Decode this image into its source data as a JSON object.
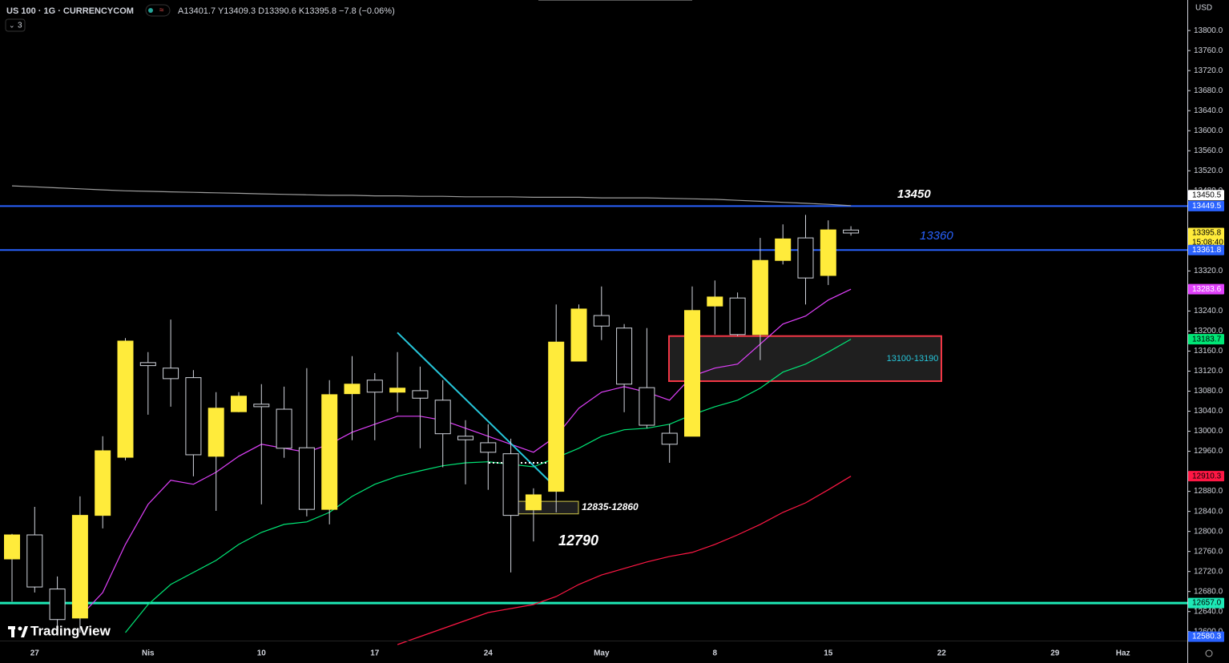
{
  "chart_data": {
    "type": "candlestick",
    "title": "US 100 · 1G · CURRENCYCOM",
    "ohlc_legend": "A13401.7 Y13409.3 D13390.6 K13395.8 −7.8 (−0.06%)",
    "indicator_count": 3,
    "currency": "USD",
    "watermark": "TradingView",
    "up_color": "#ffeb3b",
    "down_color": "#000000",
    "wick_color": "#d1d4dc",
    "categories": [
      null,
      "27",
      null,
      null,
      null,
      null,
      "Nis",
      null,
      null,
      null,
      null,
      "10",
      null,
      null,
      null,
      null,
      "17",
      null,
      null,
      null,
      null,
      "24",
      null,
      null,
      null,
      null,
      "May",
      null,
      null,
      null,
      null,
      "8",
      null,
      null,
      null,
      null,
      "15",
      null,
      null,
      null,
      null,
      "22",
      null,
      null,
      null,
      null,
      "29",
      null,
      null,
      "Haz"
    ],
    "open": [
      12745,
      12793,
      12685,
      12627,
      12832,
      12948,
      13137,
      13126,
      13107,
      12950,
      13039,
      13054,
      13044,
      12967,
      12844,
      13075,
      13102,
      13078,
      13081,
      13062,
      12990,
      12977,
      12955,
      12843,
      12880,
      13140,
      13231,
      13206,
      13087,
      12996,
      12990,
      13250,
      13266,
      13193,
      13341,
      13386,
      13311,
      13401.7,
      null,
      null,
      null,
      null,
      null,
      null,
      null,
      null,
      null,
      null,
      null,
      null
    ],
    "high": [
      12795,
      12849,
      12710,
      12870,
      12990,
      13186,
      13158,
      13223,
      13122,
      13078,
      13078,
      13094,
      13089,
      13126,
      13102,
      13150,
      13116,
      13158,
      13129,
      13102,
      13022,
      13014,
      12985,
      12886,
      13253,
      13253,
      13289,
      13214,
      13206,
      13014,
      13289,
      13301,
      13277,
      13386,
      13413,
      13432,
      13421,
      13409.3,
      null,
      null,
      null,
      null,
      null,
      null,
      null,
      null,
      null,
      null,
      null,
      null
    ],
    "low": [
      12660,
      12678,
      12600,
      12598,
      12806,
      12942,
      13033,
      13049,
      12910,
      12841,
      13038,
      12854,
      12947,
      12830,
      12814,
      12982,
      12982,
      13038,
      12966,
      12928,
      12894,
      12883,
      12718,
      12780,
      12838,
      13140,
      13182,
      13038,
      13006,
      12937,
      12990,
      13193,
      13190,
      13142,
      13333,
      13253,
      13292,
      13390.6,
      null,
      null,
      null,
      null,
      null,
      null,
      null,
      null,
      null,
      null,
      null,
      null
    ],
    "close": [
      12793,
      12689,
      12624,
      12832,
      12961,
      13180,
      13131,
      13105,
      12953,
      13046,
      13070,
      13049,
      12966,
      12844,
      13073,
      13094,
      13078,
      13086,
      13066,
      12995,
      12983,
      12958,
      12832,
      12873,
      13178,
      13244,
      13210,
      13094,
      13012,
      12974,
      13241,
      13268,
      13193,
      13341,
      13384,
      13306,
      13402,
      13395.8,
      null,
      null,
      null,
      null,
      null,
      null,
      null,
      null,
      null,
      null,
      null,
      null
    ],
    "overlays": [
      {
        "color": "#9e9e9e",
        "values": [
          13490,
          13488,
          13486,
          13484,
          13482,
          13480,
          13479,
          13478,
          13477,
          13476,
          13475,
          13474,
          13473,
          13472,
          13471,
          13471,
          13470,
          13470,
          13469,
          13469,
          13468,
          13468,
          13468,
          13467,
          13467,
          13467,
          13466,
          13466,
          13466,
          13465,
          13464,
          13463,
          13461,
          13459,
          13457,
          13455,
          13453,
          13450.5,
          null,
          null,
          null,
          null,
          null,
          null,
          null,
          null,
          null,
          null,
          null,
          null
        ]
      },
      {
        "color": "#e040fb",
        "values": [
          null,
          null,
          null,
          12630,
          12678,
          12774,
          12854,
          12902,
          12894,
          12918,
          12950,
          12974,
          12966,
          12958,
          12974,
          12998,
          13014,
          13030,
          13030,
          13022,
          13006,
          12990,
          12974,
          12958,
          12990,
          13046,
          13078,
          13089,
          13078,
          13062,
          13110,
          13126,
          13134,
          13174,
          13214,
          13230,
          13262,
          13283.6,
          null,
          null,
          null,
          null,
          null,
          null,
          null,
          null,
          null,
          null,
          null,
          null
        ]
      },
      {
        "color": "#00e676",
        "values": [
          null,
          null,
          null,
          null,
          null,
          12598,
          12654,
          12694,
          12718,
          12742,
          12774,
          12798,
          12814,
          12819,
          12838,
          12870,
          12894,
          12910,
          12921,
          12931,
          12937,
          12939,
          12934,
          12929,
          12947,
          12966,
          12990,
          13003,
          13006,
          13014,
          13033,
          13049,
          13062,
          13086,
          13118,
          13134,
          13158,
          13183.7,
          null,
          null,
          null,
          null,
          null,
          null,
          null,
          null,
          null,
          null,
          null,
          null
        ]
      },
      {
        "color": "#ff1744",
        "values": [
          null,
          null,
          null,
          null,
          null,
          null,
          null,
          null,
          null,
          null,
          null,
          null,
          null,
          null,
          null,
          null,
          null,
          12574,
          12590,
          12606,
          12622,
          12638,
          12646,
          12654,
          12670,
          12694,
          12713,
          12726,
          12739,
          12750,
          12758,
          12774,
          12793,
          12814,
          12838,
          12857,
          12883,
          12910.3,
          null,
          null,
          null,
          null,
          null,
          null,
          null,
          null,
          null,
          null,
          null,
          null
        ]
      }
    ],
    "hlines": [
      {
        "value": 13449.5,
        "color": "#2962ff"
      },
      {
        "value": 13361.8,
        "color": "#2962ff"
      },
      {
        "value": 12657.0,
        "color": "#1de9b6"
      }
    ],
    "zones": [
      {
        "low": 12835,
        "high": 12860,
        "label": "12835-12860",
        "color": "#d1c84a"
      },
      {
        "low": 13100,
        "high": 13190,
        "label": "13100-13190",
        "color": "#f23645"
      }
    ],
    "trendline": {
      "values": [
        13197,
        12889
      ],
      "color": "#26c6da"
    },
    "dotted_level": {
      "value": 12937,
      "color": "#ffffff"
    },
    "annotations": [
      "13450",
      "13360",
      "12790"
    ],
    "price_badges": [
      {
        "value": 13450.5,
        "label": "13450.5",
        "bg": "#ffffff",
        "fg": "#000000"
      },
      {
        "value": 13449.5,
        "label": "13449.5",
        "bg": "#2962ff",
        "fg": "#ffffff"
      },
      {
        "value": 13395.8,
        "label": "13395.8",
        "bg": "#ffeb3b",
        "fg": "#000000",
        "countdown": "15:08:40"
      },
      {
        "value": 13361.8,
        "label": "13361.8",
        "bg": "#2962ff",
        "fg": "#ffffff"
      },
      {
        "value": 13283.6,
        "label": "13283.6",
        "bg": "#e040fb",
        "fg": "#ffffff"
      },
      {
        "value": 13183.7,
        "label": "13183.7",
        "bg": "#00e676",
        "fg": "#000000"
      },
      {
        "value": 12910.3,
        "label": "12910.3",
        "bg": "#ff1744",
        "fg": "#000000"
      },
      {
        "value": 12657.0,
        "label": "12657.0",
        "bg": "#1de9b6",
        "fg": "#000000"
      },
      {
        "value": 12580.3,
        "label": "12580.3",
        "bg": "#2962ff",
        "fg": "#ffffff"
      }
    ],
    "ylim": [
      12582,
      13861
    ],
    "yticks": [
      {
        "value": 13800,
        "label": "13800.0"
      },
      {
        "value": 13760,
        "label": "13760.0"
      },
      {
        "value": 13720,
        "label": "13720.0"
      },
      {
        "value": 13680,
        "label": "13680.0"
      },
      {
        "value": 13640,
        "label": "13640.0"
      },
      {
        "value": 13600,
        "label": "13600.0"
      },
      {
        "value": 13560,
        "label": "13560.0"
      },
      {
        "value": 13520,
        "label": "13520.0"
      },
      {
        "value": 13480,
        "label": "13480.0"
      },
      {
        "value": 13320,
        "label": "13320.0"
      },
      {
        "value": 13240,
        "label": "13240.0"
      },
      {
        "value": 13200,
        "label": "13200.0"
      },
      {
        "value": 13160,
        "label": "13160.0"
      },
      {
        "value": 13120,
        "label": "13120.0"
      },
      {
        "value": 13080,
        "label": "13080.0"
      },
      {
        "value": 13040,
        "label": "13040.0"
      },
      {
        "value": 13000,
        "label": "13000.0"
      },
      {
        "value": 12960,
        "label": "12960.0"
      },
      {
        "value": 12880,
        "label": "12880.0"
      },
      {
        "value": 12840,
        "label": "12840.0"
      },
      {
        "value": 12800,
        "label": "12800.0"
      },
      {
        "value": 12760,
        "label": "12760.0"
      },
      {
        "value": 12720,
        "label": "12720.0"
      },
      {
        "value": 12680,
        "label": "12680.0"
      },
      {
        "value": 12640,
        "label": "12640.0"
      },
      {
        "value": 12600,
        "label": "12600.0"
      }
    ]
  }
}
